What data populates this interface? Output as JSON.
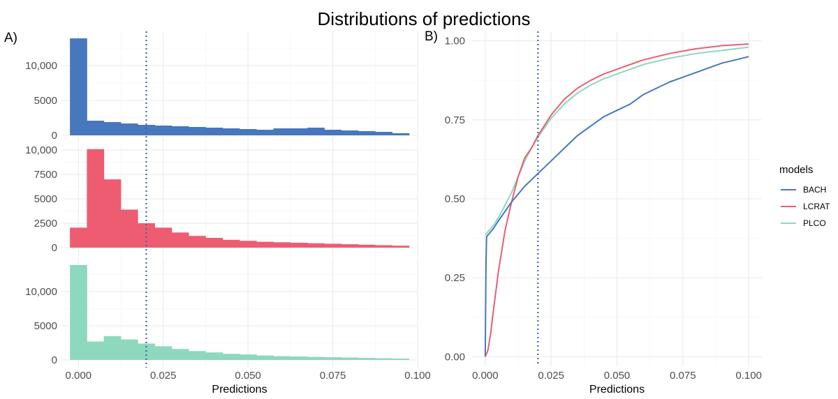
{
  "title": "Distributions of predictions",
  "panel_a_tag": "A)",
  "panel_b_tag": "B)",
  "legend_title": "models",
  "colors": {
    "BACH": "#4777bd",
    "LCRAT": "#ee5c72",
    "PLCO": "#8ed8be",
    "threshold": "#4262a8"
  },
  "chart_data": [
    {
      "type": "bar",
      "subtype": "histogram",
      "panel": "A",
      "facet": "BACH",
      "xlabel": "Predictions",
      "xlim": [
        -0.005,
        0.1
      ],
      "xticks": [
        "0.000",
        "0.025",
        "0.050",
        "0.075",
        "0.100"
      ],
      "ylim": [
        0,
        14500
      ],
      "yticks": [
        "0",
        "5000",
        "10,000"
      ],
      "bin_width": 0.005,
      "bin_centers": [
        0.0,
        0.005,
        0.01,
        0.015,
        0.02,
        0.025,
        0.03,
        0.035,
        0.04,
        0.045,
        0.05,
        0.055,
        0.06,
        0.065,
        0.07,
        0.075,
        0.08,
        0.085,
        0.09,
        0.095
      ],
      "values": [
        13900,
        2100,
        1900,
        1700,
        1500,
        1400,
        1300,
        1200,
        1100,
        1000,
        900,
        800,
        1000,
        1000,
        1100,
        800,
        700,
        600,
        500,
        300
      ],
      "vline": 0.02
    },
    {
      "type": "bar",
      "subtype": "histogram",
      "panel": "A",
      "facet": "LCRAT",
      "xlabel": "Predictions",
      "xlim": [
        -0.005,
        0.1
      ],
      "xticks": [
        "0.000",
        "0.025",
        "0.050",
        "0.075",
        "0.100"
      ],
      "ylim": [
        0,
        10300
      ],
      "yticks": [
        "0",
        "2500",
        "5000",
        "7500",
        "10,000"
      ],
      "bin_width": 0.005,
      "bin_centers": [
        0.0,
        0.005,
        0.01,
        0.015,
        0.02,
        0.025,
        0.03,
        0.035,
        0.04,
        0.045,
        0.05,
        0.055,
        0.06,
        0.065,
        0.07,
        0.075,
        0.08,
        0.085,
        0.09,
        0.095
      ],
      "values": [
        2050,
        10100,
        7000,
        3900,
        2500,
        2050,
        1550,
        1200,
        1000,
        800,
        700,
        600,
        550,
        500,
        450,
        400,
        350,
        300,
        250,
        200
      ],
      "vline": 0.02
    },
    {
      "type": "bar",
      "subtype": "histogram",
      "panel": "A",
      "facet": "PLCO",
      "xlabel": "Predictions",
      "xlim": [
        -0.005,
        0.1
      ],
      "xticks": [
        "0.000",
        "0.025",
        "0.050",
        "0.075",
        "0.100"
      ],
      "ylim": [
        0,
        14500
      ],
      "yticks": [
        "0",
        "5000",
        "10,000"
      ],
      "bin_width": 0.005,
      "bin_centers": [
        0.0,
        0.005,
        0.01,
        0.015,
        0.02,
        0.025,
        0.03,
        0.035,
        0.04,
        0.045,
        0.05,
        0.055,
        0.06,
        0.065,
        0.07,
        0.075,
        0.08,
        0.085,
        0.09,
        0.095
      ],
      "values": [
        13900,
        2700,
        3500,
        3000,
        2400,
        2000,
        1600,
        1300,
        1100,
        900,
        800,
        650,
        550,
        500,
        450,
        400,
        350,
        300,
        250,
        200
      ],
      "vline": 0.02
    },
    {
      "type": "line",
      "subtype": "ecdf",
      "panel": "B",
      "xlabel": "Predictions",
      "xlim": [
        -0.005,
        0.105
      ],
      "ylim": [
        -0.03,
        1.03
      ],
      "xticks": [
        "0.000",
        "0.025",
        "0.050",
        "0.075",
        "0.100"
      ],
      "yticks": [
        "0.00",
        "0.25",
        "0.50",
        "0.75",
        "1.00"
      ],
      "legend": "right",
      "vline": 0.02,
      "series": [
        {
          "name": "BACH",
          "x": [
            0,
            0.0001,
            0.0003,
            0.0005,
            0.001,
            0.003,
            0.005,
            0.01,
            0.015,
            0.02,
            0.025,
            0.03,
            0.035,
            0.04,
            0.045,
            0.05,
            0.055,
            0.06,
            0.065,
            0.07,
            0.075,
            0.08,
            0.085,
            0.09,
            0.095,
            0.1
          ],
          "y": [
            0,
            0.1,
            0.3,
            0.38,
            0.385,
            0.405,
            0.43,
            0.49,
            0.54,
            0.58,
            0.62,
            0.66,
            0.7,
            0.73,
            0.76,
            0.78,
            0.8,
            0.83,
            0.85,
            0.87,
            0.885,
            0.9,
            0.915,
            0.93,
            0.94,
            0.95
          ]
        },
        {
          "name": "LCRAT",
          "x": [
            0,
            0.001,
            0.002,
            0.003,
            0.005,
            0.0075,
            0.01,
            0.0125,
            0.015,
            0.0175,
            0.02,
            0.025,
            0.03,
            0.035,
            0.04,
            0.045,
            0.05,
            0.055,
            0.06,
            0.07,
            0.08,
            0.09,
            0.1
          ],
          "y": [
            0,
            0.02,
            0.07,
            0.14,
            0.27,
            0.4,
            0.49,
            0.57,
            0.63,
            0.66,
            0.7,
            0.765,
            0.815,
            0.85,
            0.875,
            0.895,
            0.91,
            0.925,
            0.94,
            0.96,
            0.975,
            0.985,
            0.99
          ]
        },
        {
          "name": "PLCO",
          "x": [
            0,
            0.0005,
            0.001,
            0.003,
            0.005,
            0.0075,
            0.01,
            0.0125,
            0.015,
            0.0175,
            0.02,
            0.025,
            0.03,
            0.035,
            0.04,
            0.045,
            0.05,
            0.055,
            0.06,
            0.07,
            0.08,
            0.09,
            0.1
          ],
          "y": [
            0.385,
            0.39,
            0.395,
            0.415,
            0.44,
            0.48,
            0.52,
            0.57,
            0.62,
            0.66,
            0.695,
            0.755,
            0.8,
            0.835,
            0.86,
            0.88,
            0.895,
            0.91,
            0.925,
            0.945,
            0.96,
            0.97,
            0.98
          ]
        }
      ]
    }
  ]
}
